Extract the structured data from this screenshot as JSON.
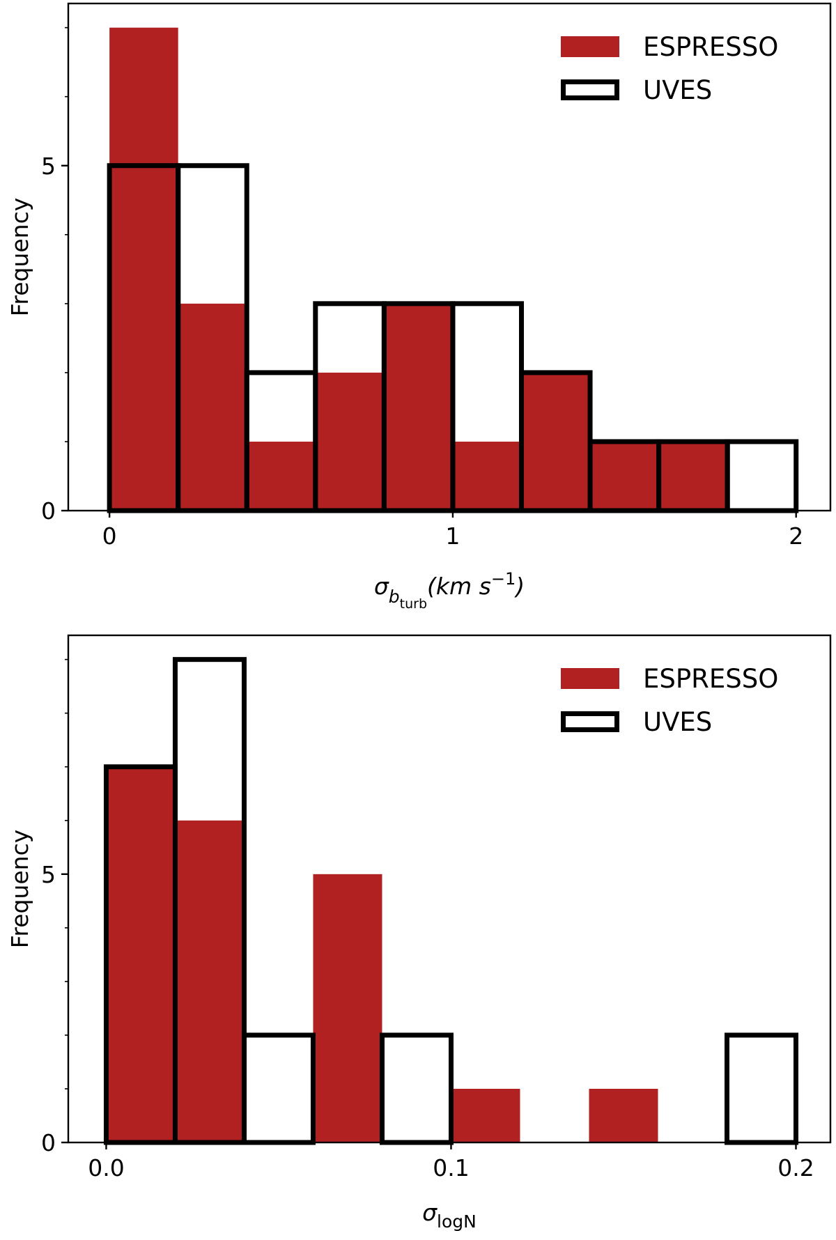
{
  "colors": {
    "espresso": "#b22122",
    "uves_edge": "#000000",
    "background": "#ffffff"
  },
  "chart_data": [
    {
      "type": "bar",
      "histtype": "overlaid histogram",
      "bin_edges": [
        0,
        0.2,
        0.4,
        0.6,
        0.8,
        1.0,
        1.2,
        1.4,
        1.6,
        1.8,
        2.0
      ],
      "series": [
        {
          "name": "ESPRESSO",
          "style": "filled",
          "values": [
            7,
            3,
            1,
            2,
            3,
            1,
            2,
            1,
            1,
            0
          ]
        },
        {
          "name": "UVES",
          "style": "outline",
          "values": [
            5,
            5,
            2,
            3,
            3,
            3,
            2,
            1,
            1,
            1
          ]
        }
      ],
      "xlim": [
        -0.12,
        2.1
      ],
      "ylim": [
        0,
        7.35
      ],
      "xticks": [
        0,
        1,
        2
      ],
      "xtick_labels": [
        "0",
        "1",
        "2"
      ],
      "yticks": [
        0,
        5
      ],
      "ytick_labels": [
        "0",
        "5"
      ],
      "yminor_ticks": [
        1,
        2,
        3,
        4,
        6,
        7
      ],
      "ylabel": "Frequency",
      "xlabel": {
        "sigma": "σ",
        "sub": "b",
        "subsub": "turb",
        "units": "(km s",
        "exp": "−1",
        "close": ")"
      },
      "legend": {
        "position": "upper right",
        "entries": [
          "ESPRESSO",
          "UVES"
        ]
      }
    },
    {
      "type": "bar",
      "histtype": "overlaid histogram",
      "bin_edges": [
        0,
        0.02,
        0.04,
        0.06,
        0.08,
        0.1,
        0.12,
        0.14,
        0.16,
        0.18,
        0.2
      ],
      "series": [
        {
          "name": "ESPRESSO",
          "style": "filled",
          "values": [
            7,
            6,
            0,
            5,
            0,
            1,
            0,
            1,
            0,
            0
          ]
        },
        {
          "name": "UVES",
          "style": "outline",
          "values": [
            7,
            9,
            2,
            0,
            2,
            0,
            0,
            0,
            0,
            2
          ]
        }
      ],
      "xlim": [
        -0.011,
        0.21
      ],
      "ylim": [
        0,
        9.45
      ],
      "xticks": [
        0.0,
        0.1,
        0.2
      ],
      "xtick_labels": [
        "0.0",
        "0.1",
        "0.2"
      ],
      "yticks": [
        0,
        5
      ],
      "ytick_labels": [
        "0",
        "5"
      ],
      "yminor_ticks": [
        1,
        2,
        3,
        4,
        6,
        7,
        8,
        9
      ],
      "ylabel": "Frequency",
      "xlabel": {
        "sigma": "σ",
        "sub": "logN"
      },
      "legend": {
        "position": "upper right",
        "entries": [
          "ESPRESSO",
          "UVES"
        ]
      }
    }
  ]
}
